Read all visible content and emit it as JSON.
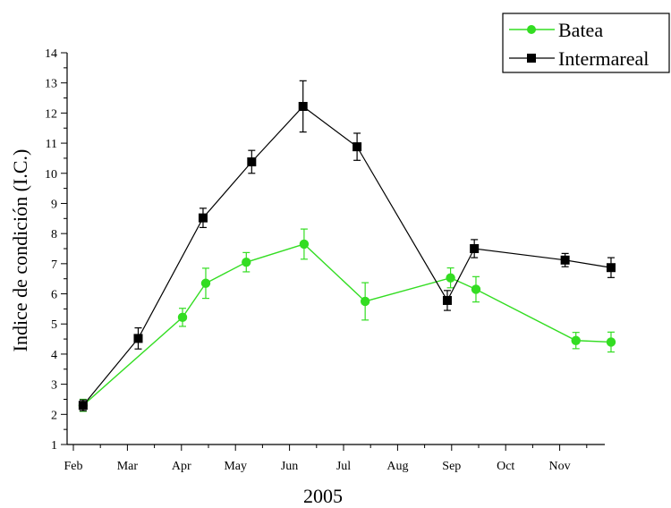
{
  "chart_data": {
    "type": "line",
    "xlabel": "2005",
    "ylabel": "Indice de condición (I.C.)",
    "ylim": [
      1,
      14
    ],
    "y_ticks": [
      1,
      2,
      3,
      4,
      5,
      6,
      7,
      8,
      9,
      10,
      11,
      12,
      13,
      14
    ],
    "xlim": [
      0,
      10.8
    ],
    "month_ticks": [
      {
        "label": "Feb",
        "x": 0
      },
      {
        "label": "Mar",
        "x": 1
      },
      {
        "label": "Apr",
        "x": 2
      },
      {
        "label": "May",
        "x": 3
      },
      {
        "label": "Jun",
        "x": 4
      },
      {
        "label": "Jul",
        "x": 5
      },
      {
        "label": "Aug",
        "x": 6
      },
      {
        "label": "Sep",
        "x": 7
      },
      {
        "label": "Oct",
        "x": 8
      },
      {
        "label": "Nov",
        "x": 9
      }
    ],
    "grid": false,
    "legend_position": "top-right",
    "series": [
      {
        "name": "Batea",
        "color": "#33dd22",
        "marker": "circle",
        "points": [
          {
            "x": 0.18,
            "y": 2.3,
            "err": 0.2
          },
          {
            "x": 2.02,
            "y": 5.22,
            "err": 0.3
          },
          {
            "x": 2.45,
            "y": 6.35,
            "err": 0.5
          },
          {
            "x": 3.2,
            "y": 7.05,
            "err": 0.32
          },
          {
            "x": 4.27,
            "y": 7.65,
            "err": 0.5
          },
          {
            "x": 5.4,
            "y": 5.75,
            "err": 0.62
          },
          {
            "x": 6.98,
            "y": 6.53,
            "err": 0.33
          },
          {
            "x": 7.45,
            "y": 6.15,
            "err": 0.42
          },
          {
            "x": 9.3,
            "y": 4.45,
            "err": 0.27
          },
          {
            "x": 9.95,
            "y": 4.4,
            "err": 0.33
          }
        ]
      },
      {
        "name": "Intermareal",
        "color": "#000000",
        "marker": "square",
        "points": [
          {
            "x": 0.18,
            "y": 2.3,
            "err": 0.18
          },
          {
            "x": 1.2,
            "y": 4.52,
            "err": 0.35
          },
          {
            "x": 2.4,
            "y": 8.52,
            "err": 0.32
          },
          {
            "x": 3.3,
            "y": 10.38,
            "err": 0.38
          },
          {
            "x": 4.25,
            "y": 12.22,
            "err": 0.85
          },
          {
            "x": 5.25,
            "y": 10.88,
            "err": 0.45
          },
          {
            "x": 6.92,
            "y": 5.78,
            "err": 0.33
          },
          {
            "x": 7.42,
            "y": 7.5,
            "err": 0.3
          },
          {
            "x": 9.1,
            "y": 7.12,
            "err": 0.22
          },
          {
            "x": 9.95,
            "y": 6.87,
            "err": 0.33
          }
        ]
      }
    ]
  }
}
